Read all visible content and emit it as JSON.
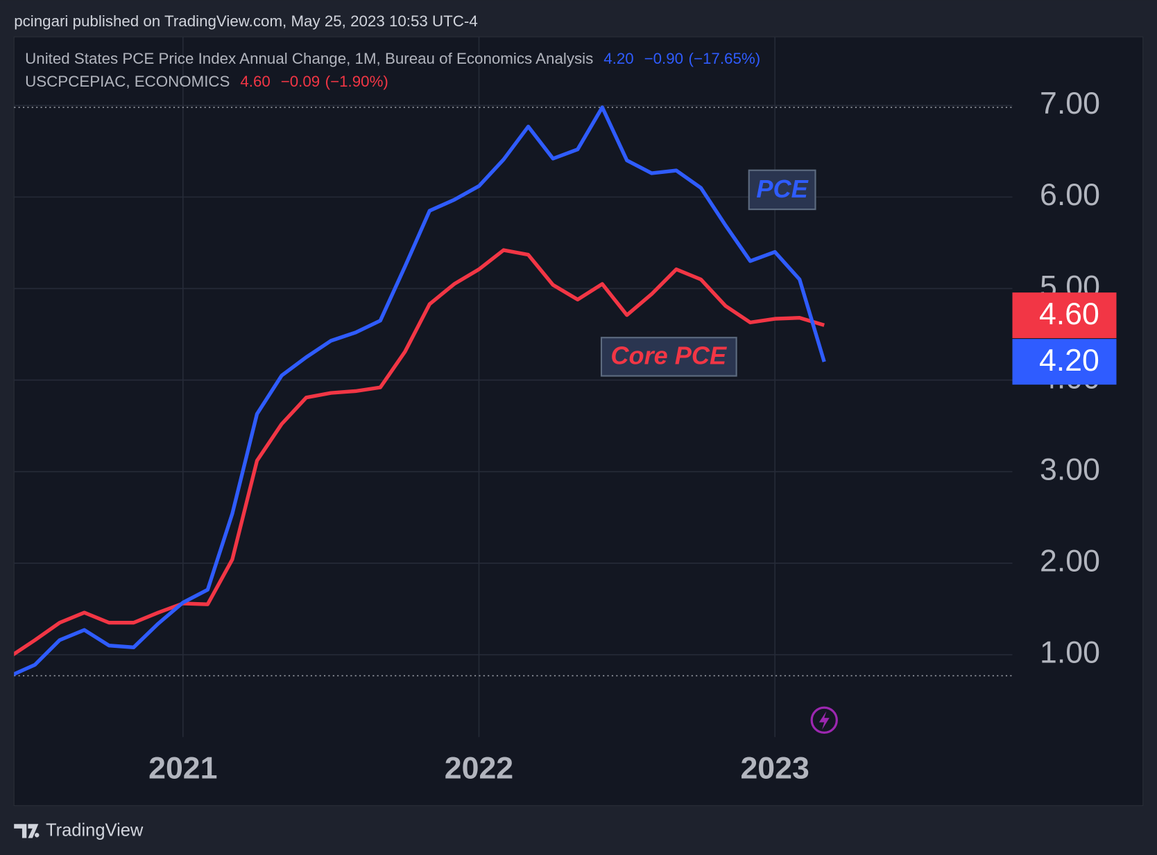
{
  "header": {
    "publisher": "pcingari published on TradingView.com, May 25, 2023 10:53 UTC-4"
  },
  "legend": [
    {
      "name": "United States PCE Price Index Annual Change, 1M, Bureau of Economics Analysis",
      "value": "4.20",
      "change": "−0.90",
      "change_pct": "(−17.65%)"
    },
    {
      "name": "USCPCEPIAC, ECONOMICS",
      "value": "4.60",
      "change": "−0.09",
      "change_pct": "(−1.90%)"
    }
  ],
  "chart_data": {
    "type": "line",
    "x": [
      "2020-06",
      "2020-07",
      "2020-08",
      "2020-09",
      "2020-10",
      "2020-11",
      "2020-12",
      "2021-01",
      "2021-02",
      "2021-03",
      "2021-04",
      "2021-05",
      "2021-06",
      "2021-07",
      "2021-08",
      "2021-09",
      "2021-10",
      "2021-11",
      "2021-12",
      "2022-01",
      "2022-02",
      "2022-03",
      "2022-04",
      "2022-05",
      "2022-06",
      "2022-07",
      "2022-08",
      "2022-09",
      "2022-10",
      "2022-11",
      "2022-12",
      "2023-01",
      "2023-02",
      "2023-03"
    ],
    "series": [
      {
        "name": "PCE",
        "color": "#2f5cff",
        "values": [
          0.77,
          0.89,
          1.16,
          1.27,
          1.1,
          1.08,
          1.34,
          1.57,
          1.71,
          2.54,
          3.63,
          4.05,
          4.25,
          4.43,
          4.52,
          4.65,
          5.24,
          5.85,
          5.97,
          6.12,
          6.41,
          6.77,
          6.42,
          6.52,
          6.98,
          6.4,
          6.26,
          6.29,
          6.1,
          5.69,
          5.3,
          5.4,
          5.1,
          4.2
        ]
      },
      {
        "name": "Core PCE",
        "color": "#f23645",
        "values": [
          0.98,
          1.16,
          1.35,
          1.46,
          1.35,
          1.35,
          1.46,
          1.56,
          1.55,
          2.04,
          3.12,
          3.52,
          3.81,
          3.86,
          3.88,
          3.92,
          4.31,
          4.83,
          5.05,
          5.21,
          5.42,
          5.37,
          5.04,
          4.88,
          5.05,
          4.71,
          4.94,
          5.21,
          5.1,
          4.81,
          4.63,
          4.67,
          4.68,
          4.6
        ]
      }
    ],
    "xlim": [
      "2020-06",
      "2023-10"
    ],
    "xticks": [
      {
        "value": "2021-01",
        "label": "2021"
      },
      {
        "value": "2022-01",
        "label": "2022"
      },
      {
        "value": "2023-01",
        "label": "2023"
      }
    ],
    "ylim": [
      0.1,
      7.75
    ],
    "yticks": [
      {
        "value": 1,
        "label": "1.00"
      },
      {
        "value": 2,
        "label": "2.00"
      },
      {
        "value": 3,
        "label": "3.00"
      },
      {
        "value": 4,
        "label": "4.00"
      },
      {
        "value": 5,
        "label": "5.00"
      },
      {
        "value": 6,
        "label": "6.00"
      },
      {
        "value": 7,
        "label": "7.00"
      }
    ],
    "grid": true
  },
  "footer": {
    "brand": "TradingView"
  }
}
